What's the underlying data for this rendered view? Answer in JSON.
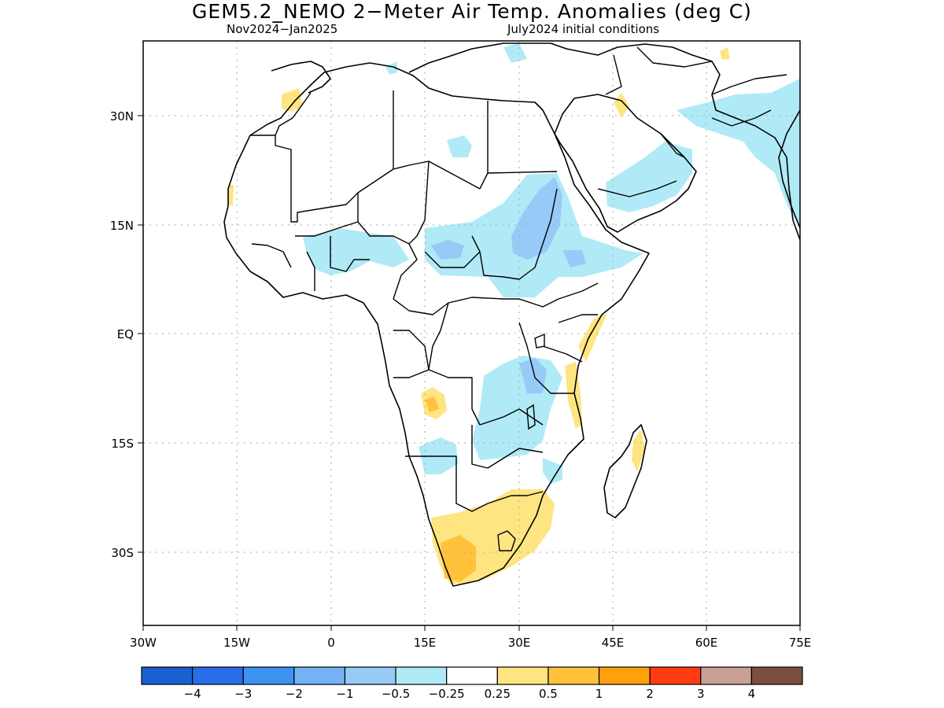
{
  "title": "GEM5.2_NEMO 2−Meter Air Temp. Anomalies (deg C)",
  "subtitle_left": "Nov2024−Jan2025",
  "subtitle_right": "July2024 initial conditions",
  "map": {
    "lon_range": [
      -30,
      75
    ],
    "lat_range": [
      -40,
      40
    ],
    "lon_ticks": [
      "30W",
      "15W",
      "0",
      "15E",
      "30E",
      "45E",
      "60E",
      "75E"
    ],
    "lat_ticks": [
      "30N",
      "15N",
      "EQ",
      "15S",
      "30S"
    ],
    "grid": "dotted"
  },
  "colorbar": {
    "colors": [
      "#1a60d0",
      "#2a6de8",
      "#3c93f0",
      "#74b4f6",
      "#98caf8",
      "#b0eaf6",
      "#ffffff",
      "#ffe581",
      "#ffc23a",
      "#ffa10c",
      "#ff3c14",
      "#c8a095",
      "#7c4e42"
    ],
    "labels": [
      "−4",
      "−3",
      "−2",
      "−1",
      "−0.5",
      "−0.25",
      "0.25",
      "0.5",
      "1",
      "2",
      "3",
      "4"
    ]
  }
}
